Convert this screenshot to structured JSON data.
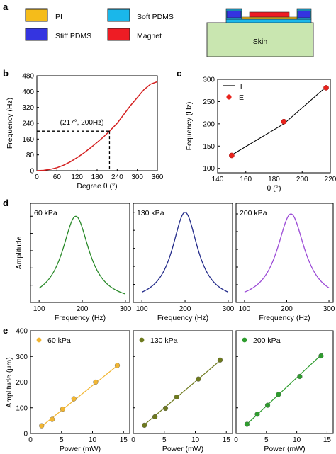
{
  "panel_labels": {
    "a": "a",
    "b": "b",
    "c": "c",
    "d": "d",
    "e": "e"
  },
  "panel_a": {
    "legend": [
      {
        "label": "PI",
        "color": "#f5bc1a"
      },
      {
        "label": "Soft PDMS",
        "color": "#1ab7ea"
      },
      {
        "label": "Stiff PDMS",
        "color": "#3434e0"
      },
      {
        "label": "Magnet",
        "color": "#ee1c24"
      }
    ],
    "skin_label": "Skin",
    "skin_color": "#c9e6b0"
  },
  "chart_data": [
    {
      "id": "b",
      "type": "line",
      "xlabel": "Degree θ (°)",
      "ylabel": "Frequency (Hz)",
      "xlim": [
        0,
        360
      ],
      "ylim": [
        0,
        480
      ],
      "xticks": [
        0,
        60,
        120,
        180,
        240,
        300,
        360
      ],
      "yticks": [
        0,
        80,
        160,
        240,
        320,
        400,
        480
      ],
      "series": [
        {
          "color": "#d42020",
          "x": [
            0,
            20,
            40,
            60,
            80,
            100,
            120,
            140,
            160,
            180,
            200,
            217,
            240,
            260,
            280,
            300,
            320,
            340,
            360
          ],
          "y": [
            0,
            2,
            7,
            15,
            28,
            45,
            66,
            89,
            115,
            143,
            172,
            200,
            240,
            285,
            330,
            370,
            410,
            438,
            450
          ]
        }
      ],
      "marker": {
        "x": 217,
        "y": 200
      },
      "annotation": "(217°, 200Hz)"
    },
    {
      "id": "c",
      "type": "scatter",
      "xlabel": "θ (°)",
      "ylabel": "Fequency (Hz)",
      "xlim": [
        140,
        220
      ],
      "ylim": [
        90,
        300
      ],
      "xticks": [
        140,
        160,
        180,
        200,
        220
      ],
      "yticks": [
        100,
        150,
        200,
        250,
        300
      ],
      "legend": [
        {
          "label": "T",
          "kind": "line",
          "color": "#000000"
        },
        {
          "label": "E",
          "kind": "dot",
          "color": "#e8231c"
        }
      ],
      "theory": {
        "x": [
          150,
          187,
          217
        ],
        "y": [
          130,
          200,
          283
        ]
      },
      "experiment": {
        "x": [
          150,
          187,
          217
        ],
        "y": [
          129,
          205,
          281
        ]
      }
    },
    {
      "id": "d",
      "type": "line",
      "ylabel": "Amplitude",
      "xlabel": "Frequency (Hz)",
      "xlim": [
        80,
        310
      ],
      "xticks": [
        100,
        200,
        300
      ],
      "subplots": [
        {
          "title": "60 kPa",
          "center": 185,
          "width": 38,
          "color": "#2a8a2a",
          "ylim": [
            0,
            1.15
          ],
          "xstart": 100,
          "xend": 300
        },
        {
          "title": "130 kPa",
          "center": 200,
          "width": 36,
          "color": "#222a8a",
          "ylim": [
            0,
            1.1
          ],
          "xstart": 100,
          "xend": 300
        },
        {
          "title": "200 kPa",
          "center": 210,
          "width": 40,
          "color": "#9b4ad6",
          "ylim": [
            0,
            1.12
          ],
          "xstart": 100,
          "xend": 300
        }
      ]
    },
    {
      "id": "e",
      "type": "scatter",
      "ylabel": "Amplitude (μm)",
      "xlabel": "Power (mW)",
      "xlim": [
        0,
        16
      ],
      "ylim": [
        0,
        400
      ],
      "xticks": [
        0,
        5,
        10,
        15
      ],
      "yticks": [
        0,
        100,
        200,
        300,
        400
      ],
      "subplots": [
        {
          "title": "60 kPa",
          "color": "#f2b632",
          "x": [
            1.8,
            3.5,
            5.2,
            7.0,
            10.5,
            14.0
          ],
          "y": [
            30,
            55,
            95,
            135,
            200,
            265
          ],
          "fit": [
            [
              1.5,
              22
            ],
            [
              14.3,
              270
            ]
          ]
        },
        {
          "title": "130 kPa",
          "color": "#6e7a1e",
          "x": [
            1.8,
            3.5,
            5.2,
            7.0,
            10.5,
            14.0
          ],
          "y": [
            32,
            65,
            98,
            142,
            212,
            286
          ],
          "fit": [
            [
              1.5,
              28
            ],
            [
              14.3,
              290
            ]
          ]
        },
        {
          "title": "200 kPa",
          "color": "#2e9c2e",
          "x": [
            1.8,
            3.5,
            5.2,
            7.0,
            10.5,
            14.0
          ],
          "y": [
            36,
            75,
            110,
            152,
            222,
            302
          ],
          "fit": [
            [
              1.5,
              30
            ],
            [
              14.3,
              312
            ]
          ]
        }
      ]
    }
  ]
}
